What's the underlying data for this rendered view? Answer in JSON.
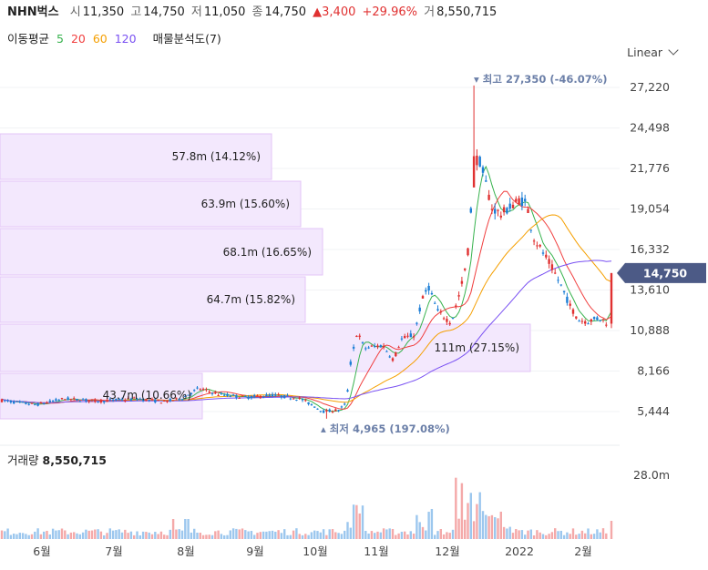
{
  "header": {
    "name": "NHN벅스",
    "open_label": "시",
    "open": "11,350",
    "high_label": "고",
    "high": "14,750",
    "low_label": "저",
    "low": "11,050",
    "close_label": "종",
    "close": "14,750",
    "change": "▲3,400",
    "change_pct": "+29.96%",
    "volume_label": "거",
    "volume": "8,550,715"
  },
  "ma_legend": {
    "label": "이동평균",
    "p5": "5",
    "p20": "20",
    "p60": "60",
    "p120": "120",
    "vp_label": "매물분석도(7)"
  },
  "scale_label": "Linear",
  "volume_panel": {
    "label": "거래량",
    "value": "8,550,715",
    "axis_tick": "28.0m"
  },
  "colors": {
    "up": "#e03131",
    "down": "#1c7ed6",
    "ma5": "#37b24d",
    "ma20": "#f03e3e",
    "ma60": "#f59f00",
    "ma120": "#7950f2",
    "vp_fill": "#f3e8fd",
    "vp_stroke": "#e3c5f7",
    "current_price_bg": "#4c5a86"
  },
  "chart_data": {
    "type": "candlestick",
    "y_ticks": [
      "27,220",
      "24,498",
      "21,776",
      "19,054",
      "16,332",
      "13,610",
      "10,888",
      "8,166",
      "5,444"
    ],
    "x_ticks": [
      "6월",
      "7월",
      "8월",
      "9월",
      "10월",
      "11월",
      "12월",
      "2022",
      "2월"
    ],
    "current_price": "14,750",
    "high_annotation": "최고 27,350 (-46.07%)",
    "low_annotation": "최저 4,965 (197.08%)",
    "volume_profile": [
      {
        "label": "57.8m (14.12%)"
      },
      {
        "label": "63.9m (15.60%)"
      },
      {
        "label": "68.1m (16.65%)"
      },
      {
        "label": "64.7m (15.82%)"
      },
      {
        "label": "111m (27.15%)"
      },
      {
        "label": "43.7m (10.66%)"
      }
    ]
  }
}
